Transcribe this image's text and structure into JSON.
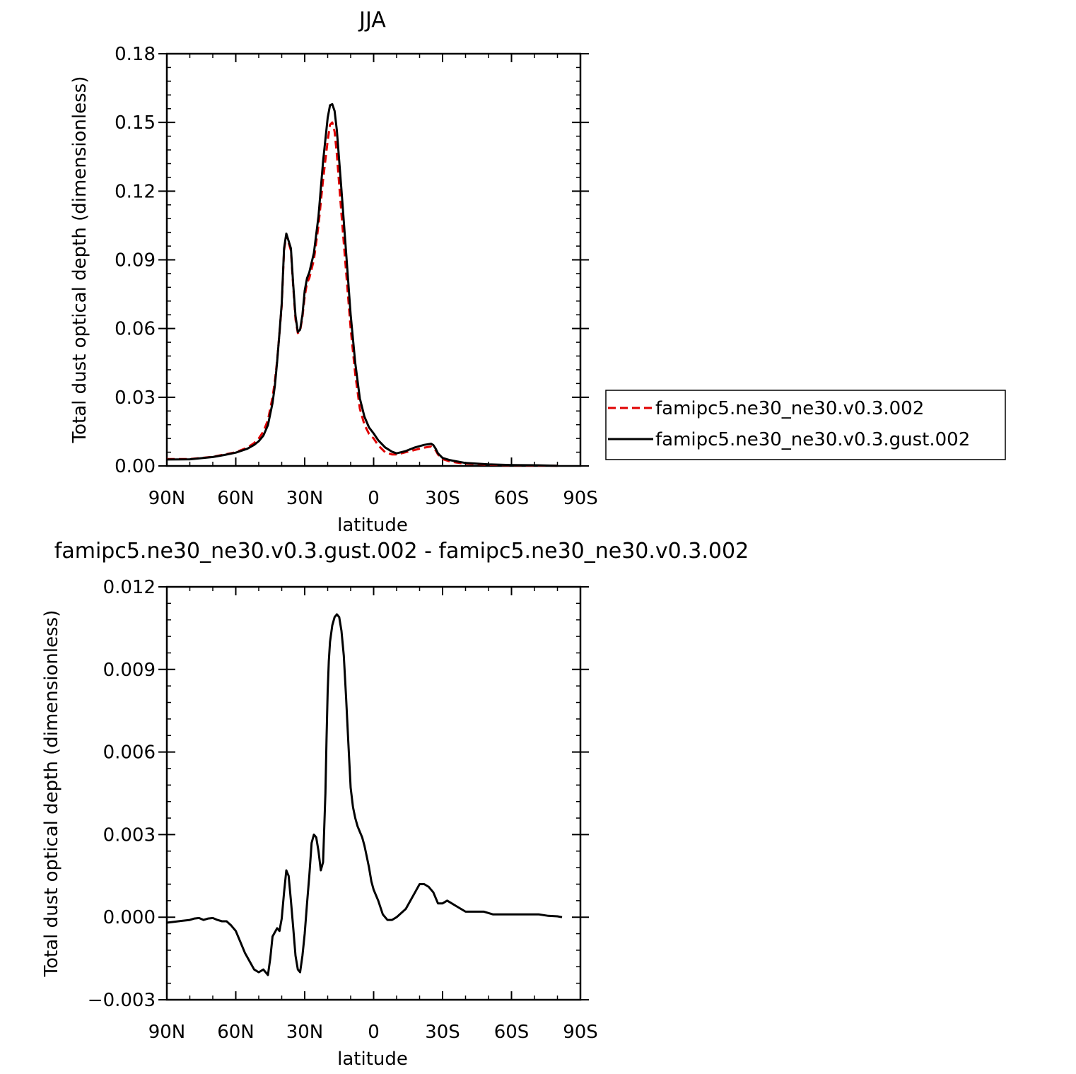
{
  "chart_data": [
    {
      "type": "line",
      "title": "JJA",
      "xlabel": "latitude",
      "ylabel": "Total dust optical depth (dimensionless)",
      "xlim": [
        90,
        -90
      ],
      "ylim": [
        0,
        0.18
      ],
      "x_ticks": [
        90,
        60,
        30,
        0,
        -30,
        -60,
        -90
      ],
      "x_tick_labels": [
        "90N",
        "60N",
        "30N",
        "0",
        "30S",
        "60S",
        "90S"
      ],
      "y_ticks": [
        0,
        0.03,
        0.06,
        0.09,
        0.12,
        0.15,
        0.18
      ],
      "y_tick_labels": [
        "0.00",
        "0.03",
        "0.06",
        "0.09",
        "0.12",
        "0.15",
        "0.18"
      ],
      "grid": false,
      "legend_position": "right",
      "series": [
        {
          "name": "famipc5.ne30_ne30.v0.3.002",
          "color": "#e00000",
          "style": "dashed",
          "x": [
            90,
            80,
            70,
            65,
            60,
            55,
            52,
            50,
            48,
            46,
            44,
            43,
            42,
            41,
            40,
            39,
            38,
            36,
            35,
            34,
            33,
            32,
            31,
            30,
            29,
            28,
            26,
            24,
            22,
            20,
            19,
            18,
            17,
            16,
            14,
            12,
            10,
            8,
            6,
            4,
            2,
            0,
            -2,
            -5,
            -8,
            -10,
            -14,
            -18,
            -22,
            -25,
            -26,
            -27,
            -28,
            -30,
            -33,
            -36,
            -40,
            -45,
            -50,
            -60,
            -70,
            -80
          ],
          "y": [
            0.003,
            0.003,
            0.004,
            0.005,
            0.006,
            0.008,
            0.01,
            0.012,
            0.015,
            0.02,
            0.03,
            0.037,
            0.046,
            0.058,
            0.07,
            0.094,
            0.101,
            0.094,
            0.078,
            0.064,
            0.058,
            0.059,
            0.065,
            0.074,
            0.08,
            0.082,
            0.09,
            0.105,
            0.125,
            0.142,
            0.149,
            0.15,
            0.146,
            0.136,
            0.11,
            0.085,
            0.06,
            0.04,
            0.025,
            0.018,
            0.014,
            0.012,
            0.009,
            0.006,
            0.005,
            0.005,
            0.006,
            0.007,
            0.008,
            0.0085,
            0.0078,
            0.0068,
            0.005,
            0.003,
            0.002,
            0.0015,
            0.001,
            0.0008,
            0.0005,
            0.0003,
            0.0002,
            0.0001
          ]
        },
        {
          "name": "famipc5.ne30_ne30.v0.3.gust.002",
          "color": "#000000",
          "style": "solid",
          "x": [
            90,
            80,
            70,
            65,
            60,
            55,
            52,
            50,
            48,
            46,
            44,
            43,
            42,
            41,
            40,
            39,
            38,
            36,
            35,
            34,
            33,
            32,
            31,
            30,
            29,
            28,
            26,
            24,
            22,
            20,
            19,
            18,
            17,
            16,
            14,
            12,
            10,
            8,
            6,
            4,
            2,
            0,
            -2,
            -5,
            -8,
            -10,
            -14,
            -18,
            -22,
            -25,
            -26,
            -27,
            -28,
            -30,
            -33,
            -36,
            -40,
            -45,
            -50,
            -60,
            -70,
            -80
          ],
          "y": [
            0.0028,
            0.0029,
            0.0039,
            0.0048,
            0.0058,
            0.0075,
            0.0092,
            0.0108,
            0.0132,
            0.0178,
            0.0275,
            0.035,
            0.0455,
            0.058,
            0.071,
            0.095,
            0.1015,
            0.095,
            0.079,
            0.0655,
            0.0585,
            0.0595,
            0.066,
            0.0765,
            0.082,
            0.0845,
            0.093,
            0.109,
            0.133,
            0.152,
            0.1575,
            0.158,
            0.155,
            0.1465,
            0.1205,
            0.0935,
            0.066,
            0.045,
            0.0295,
            0.0215,
            0.0168,
            0.0142,
            0.0112,
            0.0081,
            0.0062,
            0.0055,
            0.0065,
            0.0081,
            0.0092,
            0.0097,
            0.0091,
            0.0075,
            0.0055,
            0.0035,
            0.0026,
            0.002,
            0.0013,
            0.001,
            0.0007,
            0.0004,
            0.0003,
            0.0001
          ]
        }
      ]
    },
    {
      "type": "line",
      "title": "famipc5.ne30_ne30.v0.3.gust.002 - famipc5.ne30_ne30.v0.3.002",
      "xlabel": "latitude",
      "ylabel": "Total dust optical depth (dimensionless)",
      "xlim": [
        90,
        -90
      ],
      "ylim": [
        -0.003,
        0.012
      ],
      "x_ticks": [
        90,
        60,
        30,
        0,
        -30,
        -60,
        -90
      ],
      "x_tick_labels": [
        "90N",
        "60N",
        "30N",
        "0",
        "30S",
        "60S",
        "90S"
      ],
      "y_ticks": [
        -0.003,
        0,
        0.003,
        0.006,
        0.009,
        0.012
      ],
      "y_tick_labels": [
        "−0.003",
        "0.000",
        "0.003",
        "0.006",
        "0.009",
        "0.012"
      ],
      "grid": false,
      "series": [
        {
          "color": "#000000",
          "style": "solid",
          "x": [
            90,
            85,
            80,
            78,
            76,
            74,
            72,
            70,
            68,
            66,
            64,
            62,
            60,
            58,
            56,
            54,
            52,
            50,
            48,
            47,
            46,
            45,
            44,
            42,
            41,
            40,
            39,
            38,
            37.5,
            37,
            36,
            35,
            34,
            33,
            32,
            31,
            30,
            29,
            28,
            27,
            26,
            25,
            24,
            23,
            22,
            21,
            20.5,
            20,
            19.5,
            19,
            18,
            17,
            16,
            15,
            14,
            13,
            12,
            11,
            10,
            9,
            8,
            7,
            6,
            5,
            4,
            3,
            2,
            1,
            0,
            -2,
            -4,
            -6,
            -8,
            -10,
            -14,
            -18,
            -20,
            -22,
            -24,
            -26,
            -28,
            -30,
            -32,
            -34,
            -36,
            -38,
            -40,
            -44,
            -48,
            -52,
            -56,
            -60,
            -64,
            -68,
            -70,
            -72,
            -76,
            -80,
            -82
          ],
          "y": [
            -0.0002,
            -0.00015,
            -0.0001,
            -5e-05,
            -3e-05,
            -0.0001,
            -5e-05,
            -3e-05,
            -0.0001,
            -0.00015,
            -0.00015,
            -0.0003,
            -0.0005,
            -0.0009,
            -0.0013,
            -0.0016,
            -0.0019,
            -0.002,
            -0.0019,
            -0.002,
            -0.0021,
            -0.0015,
            -0.0007,
            -0.0004,
            -0.0005,
            -5e-05,
            0.0009,
            0.0017,
            0.0016,
            0.0015,
            0.0006,
            -0.0004,
            -0.0014,
            -0.0019,
            -0.002,
            -0.0014,
            -0.0006,
            0.0005,
            0.0015,
            0.0027,
            0.003,
            0.0029,
            0.0024,
            0.0017,
            0.002,
            0.0045,
            0.0065,
            0.0082,
            0.0093,
            0.01,
            0.0106,
            0.0109,
            0.011,
            0.0109,
            0.0104,
            0.0095,
            0.008,
            0.0063,
            0.0047,
            0.004,
            0.0036,
            0.0033,
            0.0031,
            0.0029,
            0.0026,
            0.0022,
            0.0018,
            0.0013,
            0.001,
            0.0006,
            0.0001,
            -0.0001,
            -0.0001,
            0,
            0.0003,
            0.0009,
            0.0012,
            0.0012,
            0.0011,
            0.0009,
            0.0005,
            0.0005,
            0.0006,
            0.0005,
            0.0004,
            0.0003,
            0.0002,
            0.0002,
            0.0002,
            0.0001,
            0.0001,
            0.0001,
            0.0001,
            0.0001,
            0.0001,
            0.0001,
            5e-05,
            3e-05,
            0
          ]
        }
      ]
    }
  ]
}
